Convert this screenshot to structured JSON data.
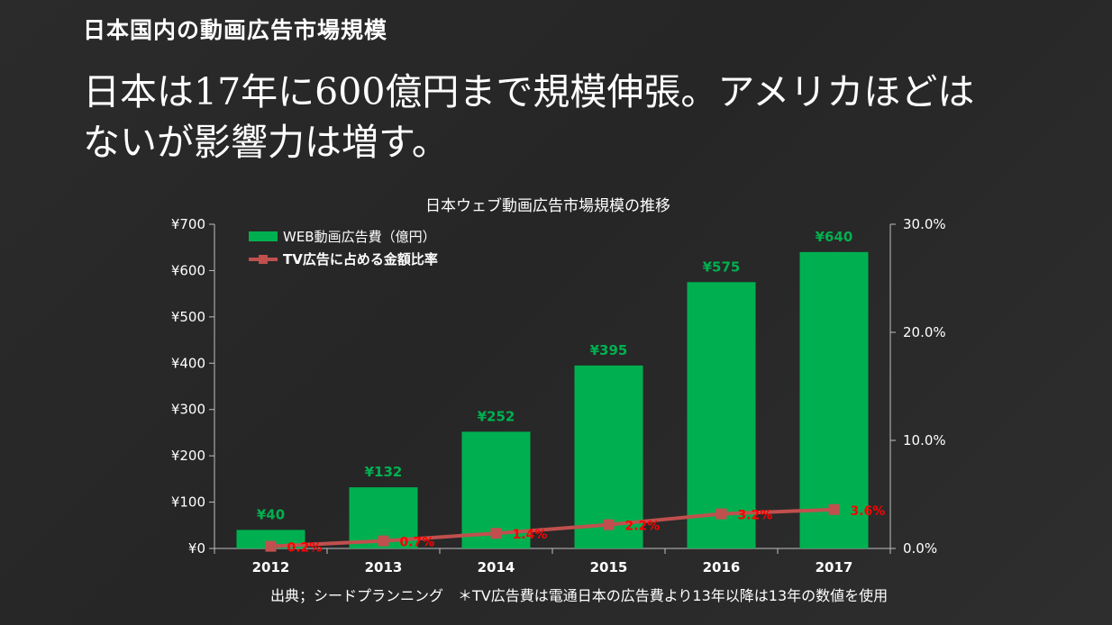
{
  "page": {
    "section_title": "日本国内の動画広告市場規模",
    "headline_line1": "日本は17年に600億円まで規模伸張。アメリカほどは",
    "headline_line2": "ないが影響力は増す。",
    "source": "出典；シードプランニング　＊TV広告費は電通日本の広告費より13年以降は13年の数値を使用"
  },
  "colors": {
    "bar": "#00b050",
    "bar_label": "#00b050",
    "line": "#c0504d",
    "line_label": "#ff0000",
    "axis": "#bfbfbf",
    "text": "#ffffff"
  },
  "chart_data": {
    "type": "bar",
    "title": "日本ウェブ動画広告市場規模の推移",
    "categories": [
      "2012",
      "2013",
      "2014",
      "2015",
      "2016",
      "2017"
    ],
    "series": [
      {
        "name": "WEB動画広告費（億円）",
        "type": "bar",
        "axis": "left",
        "values": [
          40,
          132,
          252,
          395,
          575,
          640
        ],
        "labels": [
          "¥40",
          "¥132",
          "¥252",
          "¥395",
          "¥575",
          "¥640"
        ]
      },
      {
        "name": "TV広告に占める金額比率",
        "type": "line",
        "axis": "right",
        "values": [
          0.2,
          0.7,
          1.4,
          2.2,
          3.2,
          3.6
        ],
        "labels": [
          "0.2%",
          "0.7%",
          "1.4%",
          "2.2%",
          "3.2%",
          "3.6%"
        ]
      }
    ],
    "y_left": {
      "ylim": [
        0,
        700
      ],
      "ticks": [
        0,
        100,
        200,
        300,
        400,
        500,
        600,
        700
      ],
      "tick_labels": [
        "¥0",
        "¥100",
        "¥200",
        "¥300",
        "¥400",
        "¥500",
        "¥600",
        "¥700"
      ]
    },
    "y_right": {
      "ylim": [
        0,
        30
      ],
      "ticks": [
        0,
        10,
        20,
        30
      ],
      "tick_labels": [
        "0.0%",
        "10.0%",
        "20.0%",
        "30.0%"
      ]
    },
    "grid": false,
    "legend": "top-left"
  }
}
